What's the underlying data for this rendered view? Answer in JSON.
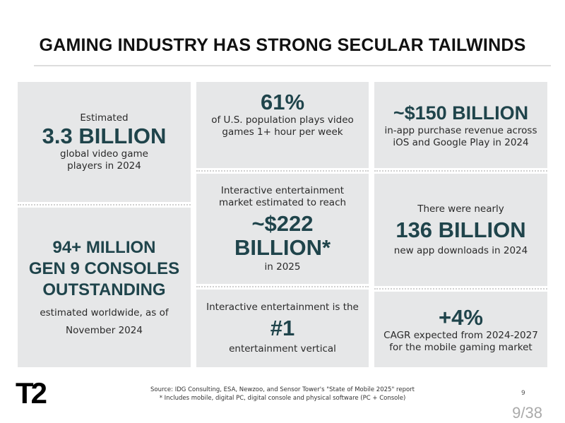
{
  "title": "GAMING INDUSTRY HAS STRONG SECULAR TAILWINDS",
  "boxes": {
    "players": {
      "pre": "Estimated",
      "big": "3.3 BILLION",
      "post1": "global video game",
      "post2": "players in 2024"
    },
    "consoles": {
      "big1": "94+ MILLION",
      "big2": "GEN 9 CONSOLES",
      "big3": "OUTSTANDING",
      "post1": "estimated worldwide, as of",
      "post2": "November 2024"
    },
    "us_pop": {
      "big": "61%",
      "post1": "of U.S. population plays video",
      "post2": "games 1+ hour per week"
    },
    "market": {
      "pre1": "Interactive entertainment",
      "pre2": "market estimated to reach",
      "big1": "~$222",
      "big2": "BILLION*",
      "post": "in 2025"
    },
    "vertical": {
      "pre": "Interactive entertainment is the",
      "big": "#1",
      "post": "entertainment vertical"
    },
    "inapp": {
      "big": "~$150 BILLION",
      "post1": "in-app purchase revenue across",
      "post2": "iOS and Google Play in 2024"
    },
    "downloads": {
      "pre": "There were nearly",
      "big": "136 BILLION",
      "post": "new app downloads in 2024"
    },
    "cagr": {
      "big": "+4%",
      "post1": "CAGR expected from 2024-2027",
      "post2": "for the mobile gaming market"
    }
  },
  "footer": {
    "logo": "T2",
    "source": "Source:  IDG Consulting, ESA, Newzoo, and Sensor Tower's \"State of Mobile 2025\" report",
    "note": "*  Includes mobile, digital PC, digital console and physical software (PC + Console)",
    "page_number": "9",
    "page_counter": "9/38"
  },
  "colors": {
    "box_bg": "#e6e7e8",
    "accent": "#1f444b"
  }
}
